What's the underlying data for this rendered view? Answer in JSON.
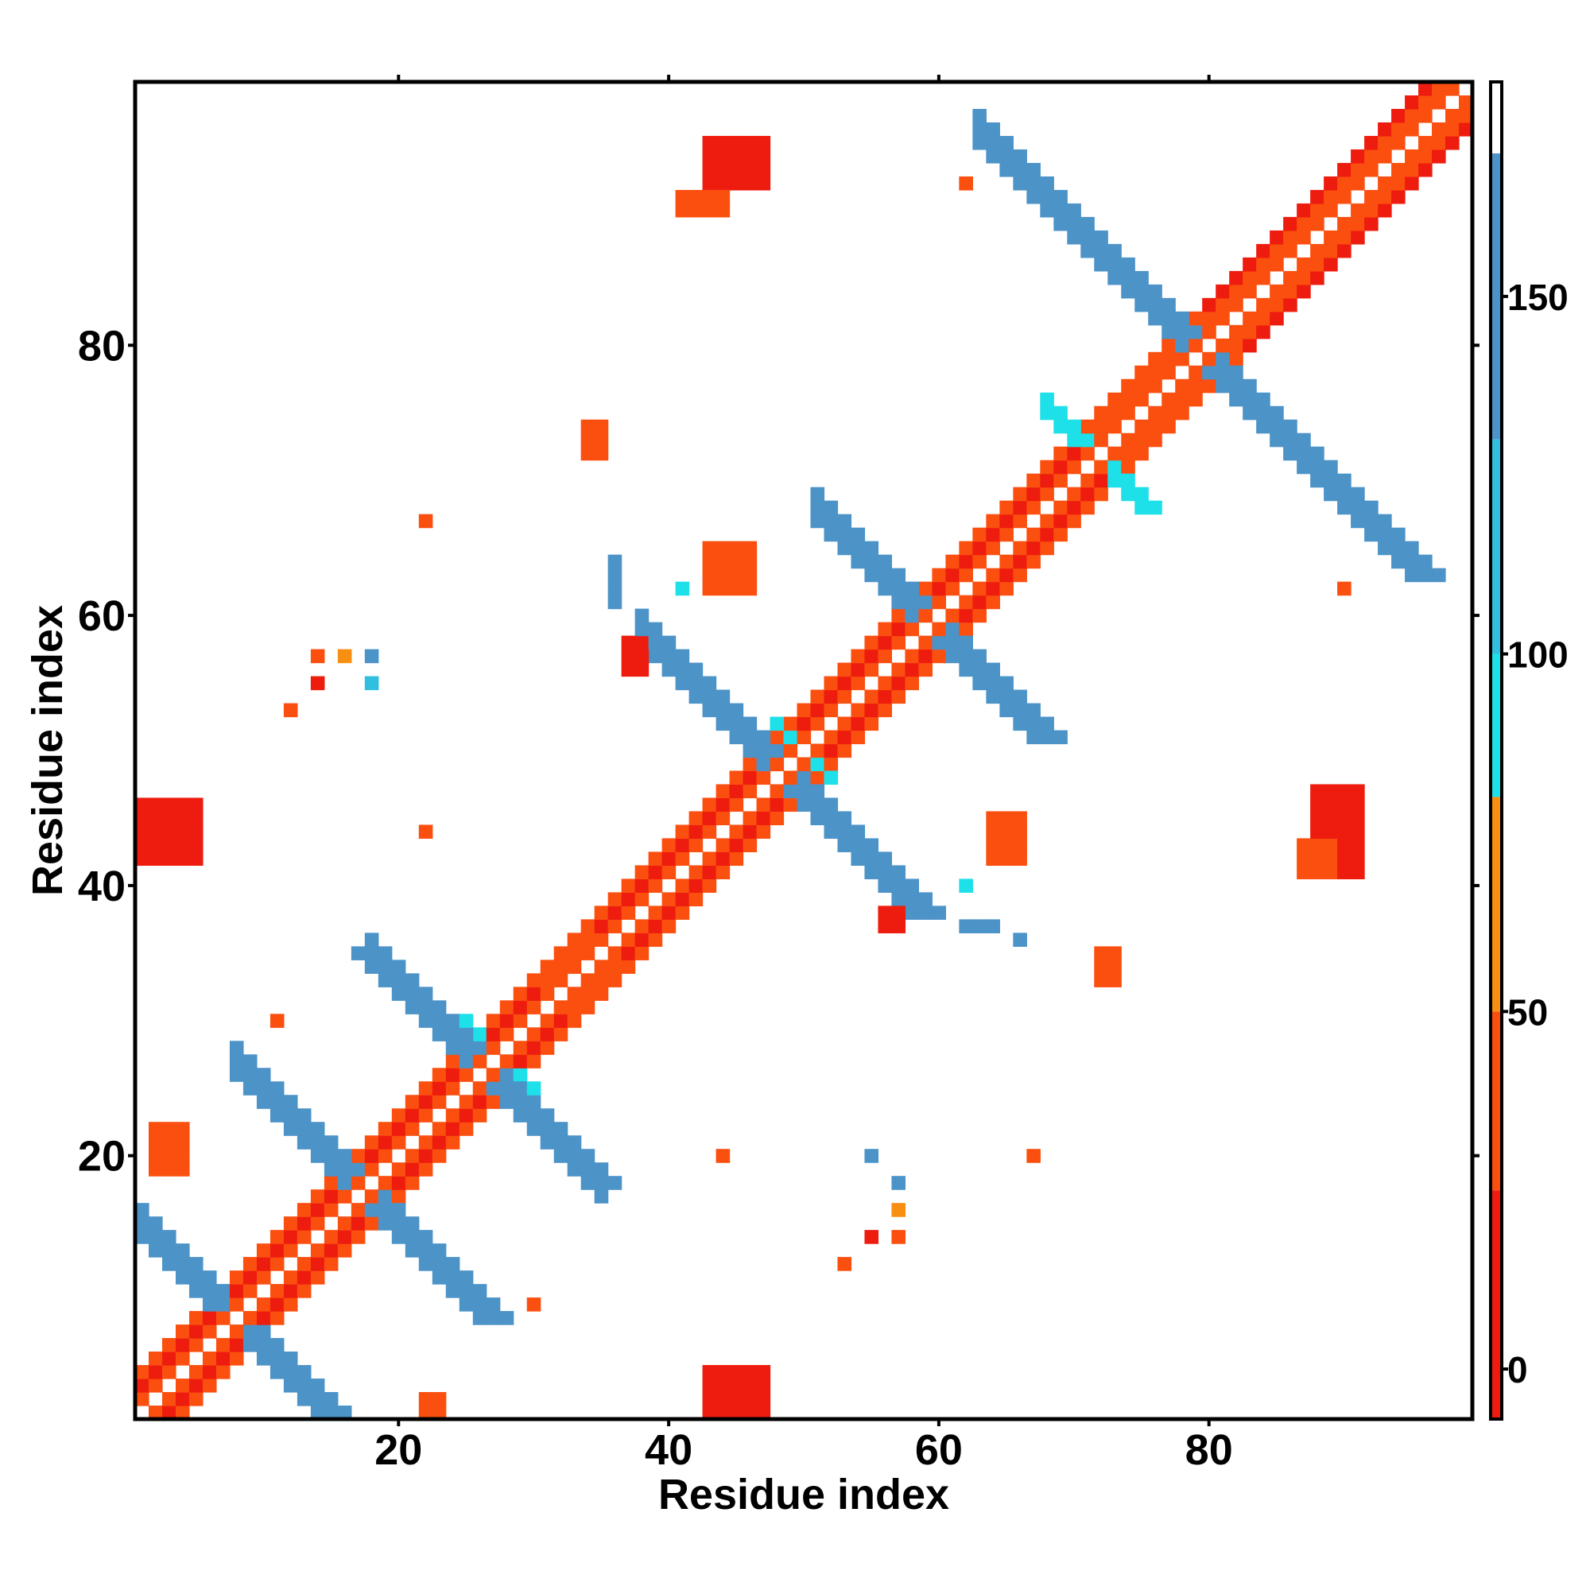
{
  "chart_data": {
    "type": "heatmap",
    "title": "",
    "xlabel": "Residue index",
    "ylabel": "Residue index",
    "xlim": [
      0.5,
      99.5
    ],
    "ylim": [
      0.5,
      99.5
    ],
    "xticks": [
      20,
      40,
      60,
      80
    ],
    "yticks": [
      20,
      40,
      60,
      80
    ],
    "colorbar": {
      "range": [
        -7,
        180
      ],
      "ticks": [
        0,
        50,
        100,
        150
      ],
      "stops": [
        {
          "from": -7,
          "to": 25,
          "color": "#ee1c0e"
        },
        {
          "from": 25,
          "to": 50,
          "color": "#fb4f10"
        },
        {
          "from": 50,
          "to": 80,
          "color": "#f79012"
        },
        {
          "from": 80,
          "to": 100,
          "color": "#1ee0e8"
        },
        {
          "from": 100,
          "to": 130,
          "color": "#30bfdf"
        },
        {
          "from": 130,
          "to": 170,
          "color": "#4c93c8"
        },
        {
          "from": 170,
          "to": 180,
          "color": "#ffffff"
        }
      ]
    },
    "segments": [
      {
        "kind": "diagonal",
        "i_start": 1,
        "i_end": 99,
        "offsets": [
          1,
          2,
          3
        ],
        "value": 40
      },
      {
        "kind": "diagonal",
        "i_start": 1,
        "i_end": 30,
        "offsets": [
          2
        ],
        "value": 5
      },
      {
        "kind": "diagonal",
        "i_start": 35,
        "i_end": 70,
        "offsets": [
          2
        ],
        "value": 10
      },
      {
        "kind": "diagonal",
        "i_start": 80,
        "i_end": 99,
        "offsets": [
          3
        ],
        "value": 10
      },
      {
        "kind": "anti",
        "i_start": 1,
        "i_end": 15,
        "sum": 15,
        "width": 3,
        "value": 140
      },
      {
        "kind": "anti",
        "i_start": 8,
        "i_end": 26,
        "sum": 34,
        "width": 3,
        "value": 145
      },
      {
        "kind": "anti",
        "i_start": 18,
        "i_end": 35,
        "sum": 52,
        "width": 3,
        "value": 140
      },
      {
        "kind": "anti",
        "i_start": 38,
        "i_end": 58,
        "sum": 96,
        "width": 3,
        "value": 142
      },
      {
        "kind": "anti",
        "i_start": 51,
        "i_end": 67,
        "sum": 118,
        "width": 3,
        "value": 140
      },
      {
        "kind": "anti",
        "i_start": 63,
        "i_end": 90,
        "sum": 158,
        "width": 3,
        "value": 140
      },
      {
        "kind": "anti",
        "i_start": 68,
        "i_end": 75,
        "sum": 143,
        "width": 2,
        "value": 95
      },
      {
        "kind": "anti",
        "i_start": 25,
        "i_end": 30,
        "sum": 55,
        "width": 1,
        "value": 95
      },
      {
        "kind": "anti",
        "i_start": 48,
        "i_end": 52,
        "sum": 100,
        "width": 1,
        "value": 92
      }
    ],
    "patches": [
      {
        "x": [
          43,
          47
        ],
        "y": [
          92,
          95
        ],
        "value": 20
      },
      {
        "x": [
          41,
          44
        ],
        "y": [
          90,
          91
        ],
        "value": 45
      },
      {
        "x": [
          43,
          47
        ],
        "y": [
          1,
          4
        ],
        "value": 20
      },
      {
        "x": [
          1,
          5
        ],
        "y": [
          42,
          46
        ],
        "value": 20
      },
      {
        "x": [
          88,
          91
        ],
        "y": [
          41,
          47
        ],
        "value": 20
      },
      {
        "x": [
          87,
          89
        ],
        "y": [
          41,
          43
        ],
        "value": 45
      },
      {
        "x": [
          34,
          35
        ],
        "y": [
          72,
          74
        ],
        "value": 45
      },
      {
        "x": [
          43,
          46
        ],
        "y": [
          62,
          65
        ],
        "value": 45
      },
      {
        "x": [
          37,
          38
        ],
        "y": [
          56,
          58
        ],
        "value": 20
      },
      {
        "x": [
          56,
          57
        ],
        "y": [
          37,
          38
        ],
        "value": 20
      },
      {
        "x": [
          64,
          66
        ],
        "y": [
          42,
          45
        ],
        "value": 45
      },
      {
        "x": [
          72,
          73
        ],
        "y": [
          33,
          35
        ],
        "value": 45
      },
      {
        "x": [
          2,
          4
        ],
        "y": [
          19,
          22
        ],
        "value": 45
      },
      {
        "x": [
          22,
          23
        ],
        "y": [
          1,
          2
        ],
        "value": 45
      },
      {
        "x": [
          62,
          64
        ],
        "y": [
          37,
          37
        ],
        "value": 140
      },
      {
        "x": [
          36,
          36
        ],
        "y": [
          61,
          64
        ],
        "value": 140
      }
    ],
    "points": [
      {
        "x": 22,
        "y": 67,
        "value": 45
      },
      {
        "x": 14,
        "y": 55,
        "value": 20
      },
      {
        "x": 14,
        "y": 57,
        "value": 40
      },
      {
        "x": 16,
        "y": 57,
        "value": 70
      },
      {
        "x": 18,
        "y": 57,
        "value": 140
      },
      {
        "x": 18,
        "y": 55,
        "value": 110
      },
      {
        "x": 12,
        "y": 53,
        "value": 45
      },
      {
        "x": 62,
        "y": 92,
        "value": 45
      },
      {
        "x": 67,
        "y": 20,
        "value": 45
      },
      {
        "x": 11,
        "y": 30,
        "value": 45
      },
      {
        "x": 30,
        "y": 9,
        "value": 45
      },
      {
        "x": 53,
        "y": 12,
        "value": 45
      },
      {
        "x": 55,
        "y": 14,
        "value": 20
      },
      {
        "x": 57,
        "y": 14,
        "value": 45
      },
      {
        "x": 57,
        "y": 16,
        "value": 70
      },
      {
        "x": 57,
        "y": 18,
        "value": 140
      },
      {
        "x": 55,
        "y": 20,
        "value": 130
      },
      {
        "x": 44,
        "y": 20,
        "value": 45
      },
      {
        "x": 90,
        "y": 62,
        "value": 45
      },
      {
        "x": 62,
        "y": 40,
        "value": 90
      },
      {
        "x": 66,
        "y": 36,
        "value": 140
      },
      {
        "x": 41,
        "y": 62,
        "value": 90
      },
      {
        "x": 22,
        "y": 44,
        "value": 45
      }
    ]
  }
}
